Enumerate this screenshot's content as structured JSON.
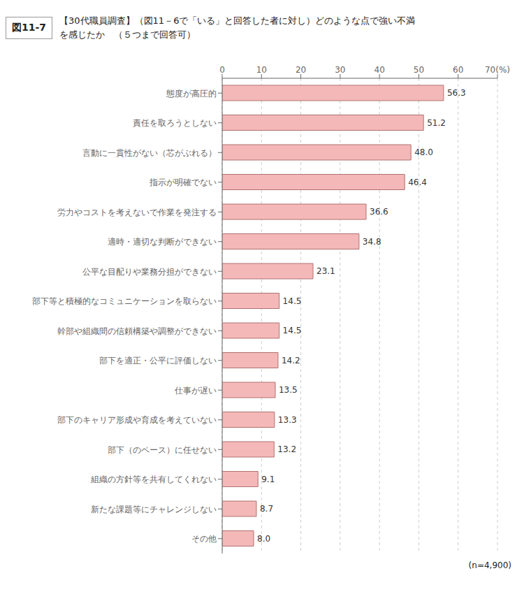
{
  "chart_data": {
    "type": "bar",
    "orientation": "horizontal",
    "title": "図11-7",
    "subtitle": [
      "【30代職員調査】（図11－6で「いる」と回答した者に対し）どのような点で強い不満",
      "を感じたか　（５つまで回答可）"
    ],
    "categories": [
      "態度が高圧的",
      "責任を取ろうとしない",
      "言動に一貫性がない（芯がぶれる）",
      "指示が明確でない",
      "労力やコストを考えないで作業を発注する",
      "適時・適切な判断ができない",
      "公平な目配りや業務分担ができない",
      "部下等と積極的なコミュニケーションを取らない",
      "幹部や組織間の信頼構築や調整ができない",
      "部下を適正・公平に評価しない",
      "仕事が遅い",
      "部下のキャリア形成や育成を考えていない",
      "部下（のペース）に任せない",
      "組織の方針等を共有してくれない",
      "新たな課題等にチャレンジしない",
      "その他"
    ],
    "values": [
      56.3,
      51.2,
      48.0,
      46.4,
      36.6,
      34.8,
      23.1,
      14.5,
      14.5,
      14.2,
      13.5,
      13.3,
      13.2,
      9.1,
      8.7,
      8.0
    ],
    "value_labels": [
      "56.3",
      "51.2",
      "48.0",
      "46.4",
      "36.6",
      "34.8",
      "23.1",
      "14.5",
      "14.5",
      "14.2",
      "13.5",
      "13.3",
      "13.2",
      "9.1",
      "8.7",
      "8.0"
    ],
    "data_labels": true,
    "color": "#f5b8b8",
    "xlim": [
      0,
      70
    ],
    "xticks": [
      0,
      10,
      20,
      30,
      40,
      50,
      60,
      {
        "value": 70,
        "label": "70(%)"
      }
    ],
    "grid": true,
    "annotations": [
      "(n=4,900)"
    ]
  }
}
